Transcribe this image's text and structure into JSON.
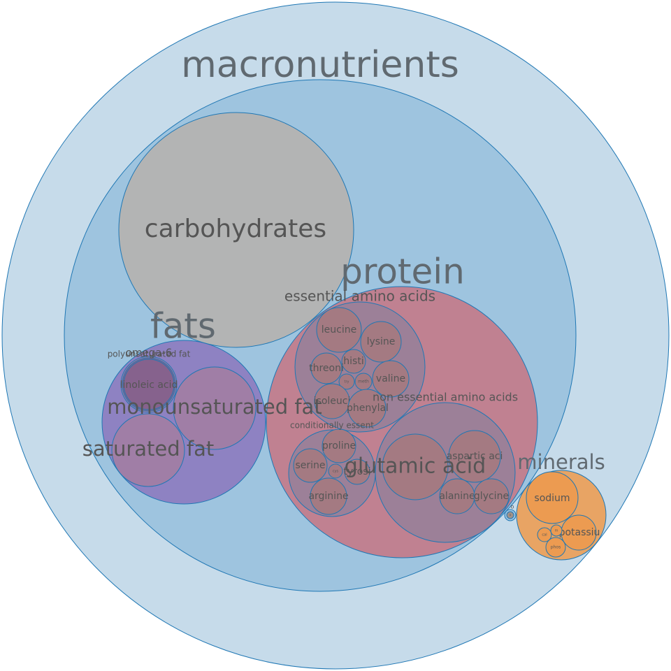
{
  "colors": {
    "macronutrients": "#c6dbea",
    "inner": "#9ec4df",
    "carbohydrates": "#b3b4b4",
    "fats": "#8e82c2",
    "fats_sub": "#a07ea6",
    "omega": "#86628d",
    "protein": "#c08191",
    "protein_group": "#9c8098",
    "amino": "#a47a82",
    "minerals": "#e8a464",
    "mineral_item": "#ec9b51",
    "label_dark": "#555555",
    "label_group": "#606970"
  },
  "labels": {
    "macronutrients": "macronutrients",
    "carbohydrates": "carbohydrates",
    "protein": "protein",
    "fats": "fats",
    "essential_amino_acids": "essential amino acids",
    "leucine": "leucine",
    "lysine": "lysine",
    "histidine": "histi",
    "threonine": "threoni",
    "valine": "valine",
    "tryptophan": "try",
    "methionine": "meth",
    "isoleucine": "isoleuci",
    "phenylalanine": "phenylal",
    "non_essential_amino_acids": "non essential amino acids",
    "conditionally_essential": "conditionally essent",
    "proline": "proline",
    "serine": "serine",
    "cysteine": "cys",
    "tyrosine": "tyrosi",
    "arginine": "arginine",
    "glutamic_acid": "glutamic acid",
    "aspartic_acid": "aspartic aci",
    "alanine": "alanine",
    "glycine": "glycine",
    "polyunsaturated_fat": "polyunsaturated fat",
    "omega_6": "omega-6",
    "linoleic_acid": "linoleic acid",
    "monounsaturated_fat": "monounsaturated fat",
    "saturated_fat": "saturated fat",
    "minerals": "minerals",
    "sodium": "sodium",
    "potassium": "potassiu",
    "calcium": "cal",
    "magnesium": "m",
    "phosphorus": "phos",
    "other": "o",
    "other_inner": "o"
  }
}
